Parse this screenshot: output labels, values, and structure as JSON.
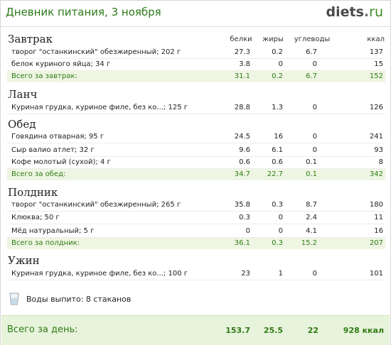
{
  "header": {
    "title": "Дневник питания, 3 ноября",
    "logo_main": "diets",
    "logo_dot": ".",
    "logo_tld": "ru"
  },
  "columns": [
    "белки",
    "жиры",
    "углеводы",
    "ккал"
  ],
  "meals": [
    {
      "name": "Завтрак",
      "items": [
        {
          "name": "творог \"останкинский\" обезжиренный; 202 г",
          "p": "27.3",
          "f": "0.2",
          "c": "6.7",
          "kcal": "137"
        },
        {
          "name": "белок куриного яйца; 34 г",
          "p": "3.8",
          "f": "0",
          "c": "0",
          "kcal": "15"
        }
      ],
      "total": {
        "label": "Всего за завтрак:",
        "p": "31.1",
        "f": "0.2",
        "c": "6.7",
        "kcal": "152"
      }
    },
    {
      "name": "Ланч",
      "items": [
        {
          "name": "Куриная грудка, куриное филе, без ко...; 125 г",
          "p": "28.8",
          "f": "1.3",
          "c": "0",
          "kcal": "126"
        }
      ],
      "total": null
    },
    {
      "name": "Обед",
      "items": [
        {
          "name": "Говядина отварная; 95 г",
          "p": "24.5",
          "f": "16",
          "c": "0",
          "kcal": "241"
        },
        {
          "name": "Сыр валио атлет; 32 г",
          "p": "9.6",
          "f": "6.1",
          "c": "0",
          "kcal": "93"
        },
        {
          "name": "Кофе молотый (сухой); 4 г",
          "p": "0.6",
          "f": "0.6",
          "c": "0.1",
          "kcal": "8"
        }
      ],
      "total": {
        "label": "Всего за обед:",
        "p": "34.7",
        "f": "22.7",
        "c": "0.1",
        "kcal": "342"
      }
    },
    {
      "name": "Полдник",
      "items": [
        {
          "name": "творог \"останкинский\" обезжиренный; 265 г",
          "p": "35.8",
          "f": "0.3",
          "c": "8.7",
          "kcal": "180"
        },
        {
          "name": "Клюква; 50 г",
          "p": "0.3",
          "f": "0",
          "c": "2.4",
          "kcal": "11"
        },
        {
          "name": "Мёд натуральный; 5 г",
          "p": "0",
          "f": "0",
          "c": "4.1",
          "kcal": "16"
        }
      ],
      "total": {
        "label": "Всего за полдник:",
        "p": "36.1",
        "f": "0.3",
        "c": "15.2",
        "kcal": "207"
      }
    },
    {
      "name": "Ужин",
      "items": [
        {
          "name": "Куриная грудка, куриное филе, без ко...; 100 г",
          "p": "23",
          "f": "1",
          "c": "0",
          "kcal": "101"
        }
      ],
      "total": null
    }
  ],
  "water": {
    "text": "Воды выпито: 8 стаканов",
    "icon": "glass-icon"
  },
  "day_total": {
    "label": "Всего за день:",
    "p": "153.7",
    "f": "25.5",
    "c": "22",
    "kcal": "928 ккал"
  },
  "colors": {
    "green": "#2f7a14",
    "total_bg": "#eef6e3",
    "day_bg": "#e8f3dc"
  }
}
